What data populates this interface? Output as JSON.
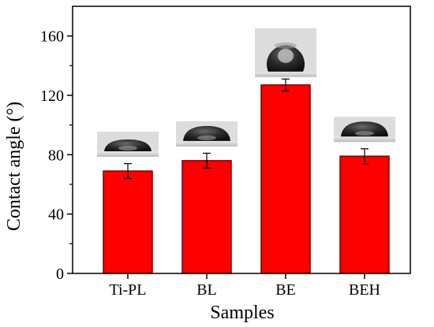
{
  "chart_data": {
    "type": "bar",
    "categories": [
      "Ti-PL",
      "BL",
      "BE",
      "BEH"
    ],
    "values": [
      69,
      76,
      127,
      79
    ],
    "errors": [
      5,
      5,
      4,
      5
    ],
    "xlabel": "Samples",
    "ylabel": "Contact angle (°)",
    "ylim": [
      0,
      180
    ],
    "yticks": [
      0,
      40,
      80,
      120,
      160
    ],
    "grid": false,
    "bar_color": "#ff0000",
    "bar_edge_color": "#7a0000",
    "droplet_images": [
      "Ti-PL",
      "BL",
      "BE",
      "BEH"
    ]
  }
}
